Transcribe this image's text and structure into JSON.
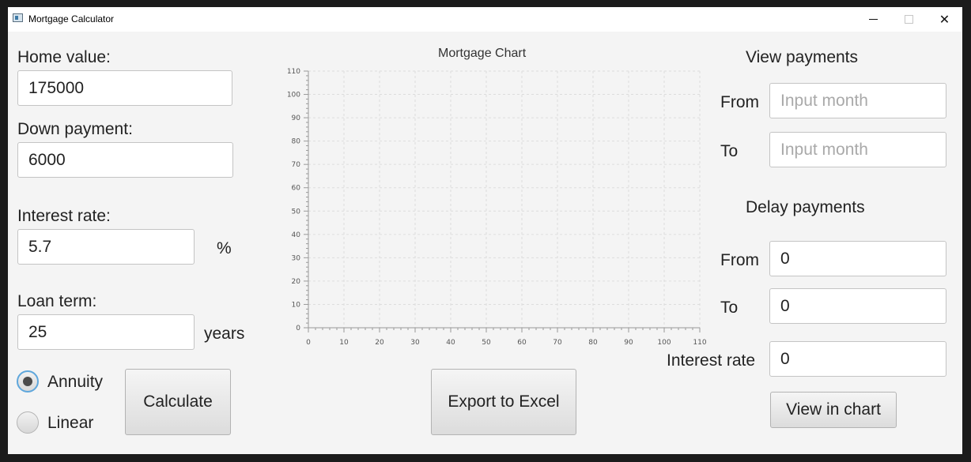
{
  "window": {
    "title": "Mortgage Calculator",
    "icon": "app-window-icon",
    "controls": [
      "minimize-icon",
      "maximize-icon",
      "close-icon"
    ]
  },
  "left_panel": {
    "home_value": {
      "label": "Home value:",
      "value": "175000"
    },
    "down_payment": {
      "label": "Down payment:",
      "value": "6000"
    },
    "interest_rate": {
      "label": "Interest rate:",
      "value": "5.7",
      "unit": "%"
    },
    "loan_term": {
      "label": "Loan term:",
      "value": "25",
      "unit": "years"
    },
    "method": {
      "options": [
        {
          "label": "Annuity",
          "selected": true
        },
        {
          "label": "Linear",
          "selected": false
        }
      ]
    },
    "calculate_label": "Calculate"
  },
  "chart": {
    "export_label": "Export to Excel"
  },
  "chart_data": {
    "type": "line",
    "title": "Mortgage Chart",
    "xlabel": "",
    "ylabel": "",
    "xlim": [
      0,
      110
    ],
    "ylim": [
      0,
      110
    ],
    "x_ticks": [
      "0",
      "10",
      "20",
      "30",
      "40",
      "50",
      "60",
      "70",
      "80",
      "90",
      "100",
      "110"
    ],
    "y_ticks": [
      "0",
      "10",
      "20",
      "30",
      "40",
      "50",
      "60",
      "70",
      "80",
      "90",
      "100",
      "110"
    ],
    "grid": true,
    "series": []
  },
  "right_panel": {
    "view_payments": {
      "heading": "View payments",
      "from_label": "From",
      "from_placeholder": "Input month",
      "to_label": "To",
      "to_placeholder": "Input month"
    },
    "delay_payments": {
      "heading": "Delay payments",
      "from_label": "From",
      "from_value": "0",
      "to_label": "To",
      "to_value": "0",
      "interest_label": "Interest rate",
      "interest_value": "0"
    },
    "view_chart_label": "View in chart"
  },
  "colors": {
    "radio_focus": "#5fa7dc",
    "window_bg": "#f4f4f4",
    "frame_bg": "#1b1b1b"
  }
}
